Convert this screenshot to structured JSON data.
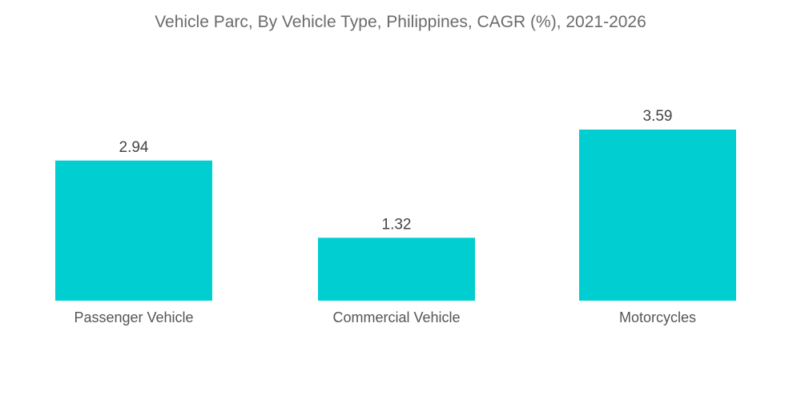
{
  "chart_data": {
    "type": "bar",
    "title": "Vehicle Parc, By Vehicle Type, Philippines, CAGR (%), 2021-2026",
    "categories": [
      "Passenger Vehicle",
      "Commercial Vehicle",
      "Motorcycles"
    ],
    "values": [
      2.94,
      1.32,
      3.59
    ],
    "value_labels": [
      "2.94",
      "1.32",
      "3.59"
    ],
    "xlabel": "",
    "ylabel": "",
    "grid": false,
    "legend": "none",
    "colors": {
      "bar": "#00CED1"
    }
  }
}
